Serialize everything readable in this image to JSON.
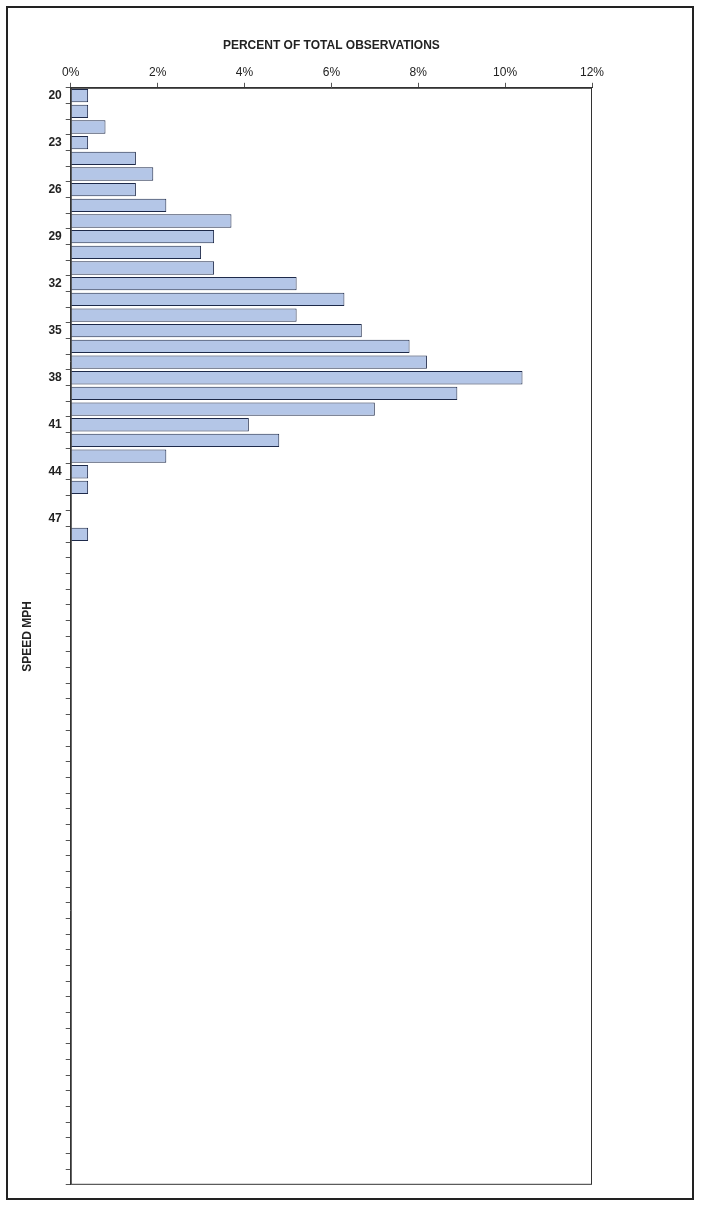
{
  "chart_data": {
    "type": "bar",
    "orientation": "horizontal",
    "xlabel": "PERCENT OF TOTAL OBSERVATIONS",
    "ylabel": "SPEED MPH",
    "categories": [
      "20",
      null,
      null,
      "23",
      null,
      null,
      "26",
      null,
      null,
      "29",
      null,
      null,
      "32",
      null,
      null,
      "35",
      null,
      null,
      "38",
      null,
      null,
      "41",
      null,
      null,
      "44",
      null,
      null,
      "47",
      null,
      null,
      null,
      null,
      null,
      null,
      null,
      null,
      null,
      null,
      null,
      null,
      null,
      null,
      null,
      null,
      null,
      null,
      null,
      null,
      null,
      null,
      null,
      null,
      null,
      null,
      null,
      null,
      null,
      null,
      null,
      null,
      null,
      null,
      null,
      null,
      null,
      null,
      null,
      null,
      null,
      null
    ],
    "values": [
      0.4,
      0.4,
      0.8,
      0.4,
      1.5,
      1.9,
      1.5,
      2.2,
      3.7,
      3.3,
      3.0,
      3.3,
      5.2,
      6.3,
      5.2,
      6.7,
      7.8,
      8.2,
      10.4,
      8.9,
      7.0,
      4.1,
      4.8,
      2.2,
      0.4,
      0.4,
      0,
      0,
      0.4,
      0,
      0,
      0,
      0,
      0,
      0,
      0,
      0,
      0,
      0,
      0,
      0,
      0,
      0,
      0,
      0,
      0,
      0,
      0,
      0,
      0,
      0,
      0,
      0,
      0,
      0,
      0,
      0,
      0,
      0,
      0,
      0,
      0,
      0,
      0,
      0,
      0,
      0,
      0,
      0,
      0
    ],
    "color": "#b4c6e7",
    "xlim": [
      0,
      12
    ],
    "xticks": [
      {
        "value": 0,
        "label": "0%"
      },
      {
        "value": 2,
        "label": "2%"
      },
      {
        "value": 4,
        "label": "4%"
      },
      {
        "value": 6,
        "label": "6%"
      },
      {
        "value": 8,
        "label": "8%"
      },
      {
        "value": 10,
        "label": "10%"
      },
      {
        "value": 12,
        "label": "12%"
      }
    ],
    "grid": false
  }
}
